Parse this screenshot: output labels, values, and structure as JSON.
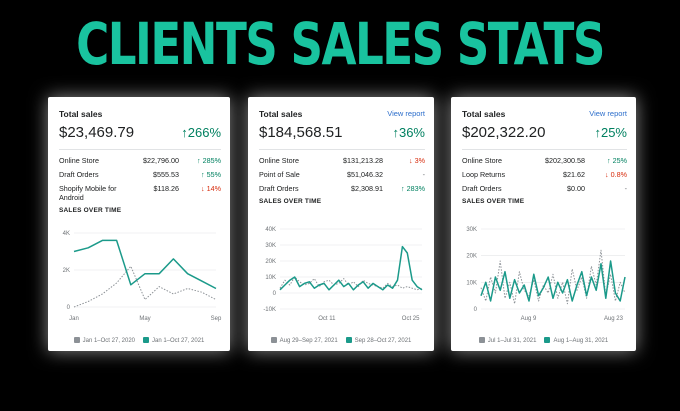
{
  "headline": "CLIENTS SALES STATS",
  "colors": {
    "accent": "#19c39f",
    "current": "#1b9a8a",
    "previous": "#8c9196",
    "up": "#008060",
    "down": "#d72c0d"
  },
  "cards": [
    {
      "title": "Total sales",
      "view_report": "",
      "amount": "$23,469.79",
      "change": "↑266%",
      "breakdown": [
        {
          "name": "Online Store",
          "value": "$22,796.00",
          "change": "↑ 285%",
          "dir": "up"
        },
        {
          "name": "Draft Orders",
          "value": "$555.53",
          "change": "↑ 55%",
          "dir": "up"
        },
        {
          "name": "Shopify Mobile for Android",
          "value": "$118.26",
          "change": "↓ 14%",
          "dir": "down"
        }
      ],
      "sales_over_time": "SALES OVER TIME",
      "legend_prev": "Jan 1–Oct 27, 2020",
      "legend_curr": "Jan 1–Oct 27, 2021",
      "chart_data": {
        "type": "line",
        "y_ticks": [
          "4K",
          "2K",
          "0"
        ],
        "ylim": [
          0,
          4000
        ],
        "x_ticks": [
          "Jan",
          "May",
          "Sep"
        ],
        "series": [
          {
            "name": "Jan 1–Oct 27, 2020",
            "values": [
              0,
              300,
              700,
              1300,
              2200,
              400,
              1100,
              700,
              1000,
              800,
              400
            ]
          },
          {
            "name": "Jan 1–Oct 27, 2021",
            "values": [
              3000,
              3200,
              3600,
              3600,
              1200,
              1800,
              1800,
              2600,
              1800,
              1400,
              1000
            ]
          }
        ]
      }
    },
    {
      "title": "Total sales",
      "view_report": "View report",
      "amount": "$184,568.51",
      "change": "↑36%",
      "breakdown": [
        {
          "name": "Online Store",
          "value": "$131,213.28",
          "change": "↓ 3%",
          "dir": "down"
        },
        {
          "name": "Point of Sale",
          "value": "$51,046.32",
          "change": "-",
          "dir": "neutral"
        },
        {
          "name": "Draft Orders",
          "value": "$2,308.91",
          "change": "↑ 283%",
          "dir": "up"
        }
      ],
      "sales_over_time": "SALES OVER TIME",
      "legend_prev": "Aug 29–Sep 27, 2021",
      "legend_curr": "Sep 28–Oct 27, 2021",
      "chart_data": {
        "type": "line",
        "y_ticks": [
          "40K",
          "30K",
          "20K",
          "10K",
          "0",
          "-10K"
        ],
        "ylim": [
          -10000,
          40000
        ],
        "x_ticks": [
          "Oct 11",
          "Oct 25"
        ],
        "series": [
          {
            "name": "Aug 29–Sep 27, 2021",
            "values": [
              3000,
              8000,
              5000,
              10000,
              7000,
              5000,
              6000,
              9000,
              4000,
              7000,
              8000,
              5000,
              6000,
              9000,
              5000,
              7000,
              4000,
              8000,
              6000,
              5000,
              4000,
              3000,
              6000,
              4000,
              5000,
              3000,
              4000,
              3000,
              2000,
              3000
            ]
          },
          {
            "name": "Sep 28–Oct 27, 2021",
            "values": [
              2000,
              5000,
              8000,
              10000,
              4000,
              6000,
              7000,
              3000,
              5000,
              6000,
              2000,
              5000,
              8000,
              4000,
              6000,
              2000,
              5000,
              7000,
              3000,
              6000,
              4000,
              2000,
              5000,
              3000,
              8000,
              29000,
              25000,
              8000,
              4000,
              2000
            ]
          }
        ]
      }
    },
    {
      "title": "Total sales",
      "view_report": "View report",
      "amount": "$202,322.20",
      "change": "↑25%",
      "breakdown": [
        {
          "name": "Online Store",
          "value": "$202,300.58",
          "change": "↑ 25%",
          "dir": "up"
        },
        {
          "name": "Loop Returns",
          "value": "$21.62",
          "change": "↓ 0.8%",
          "dir": "down"
        },
        {
          "name": "Draft Orders",
          "value": "$0.00",
          "change": "-",
          "dir": "neutral"
        }
      ],
      "sales_over_time": "SALES OVER TIME",
      "legend_prev": "Jul 1–Jul 31, 2021",
      "legend_curr": "Aug 1–Aug 31, 2021",
      "chart_data": {
        "type": "line",
        "y_ticks": [
          "30K",
          "20K",
          "10K",
          "0"
        ],
        "ylim": [
          0,
          30000
        ],
        "x_ticks": [
          "Aug 9",
          "Aug 23"
        ],
        "series": [
          {
            "name": "Jul 1–Jul 31, 2021",
            "values": [
              8000,
              3000,
              12000,
              6000,
              18000,
              4000,
              10000,
              2000,
              14000,
              7000,
              5000,
              11000,
              3000,
              9000,
              6000,
              13000,
              4000,
              10000,
              2000,
              15000,
              7000,
              12000,
              4000,
              16000,
              9000,
              22000,
              5000,
              13000,
              3000,
              10000,
              6000
            ]
          },
          {
            "name": "Aug 1–Aug 31, 2021",
            "values": [
              5000,
              10000,
              3000,
              12000,
              7000,
              14000,
              4000,
              11000,
              6000,
              9000,
              3000,
              13000,
              5000,
              8000,
              12000,
              4000,
              10000,
              6000,
              11000,
              3000,
              9000,
              14000,
              5000,
              12000,
              7000,
              17000,
              4000,
              18000,
              6000,
              3000,
              12000
            ]
          }
        ]
      }
    }
  ]
}
